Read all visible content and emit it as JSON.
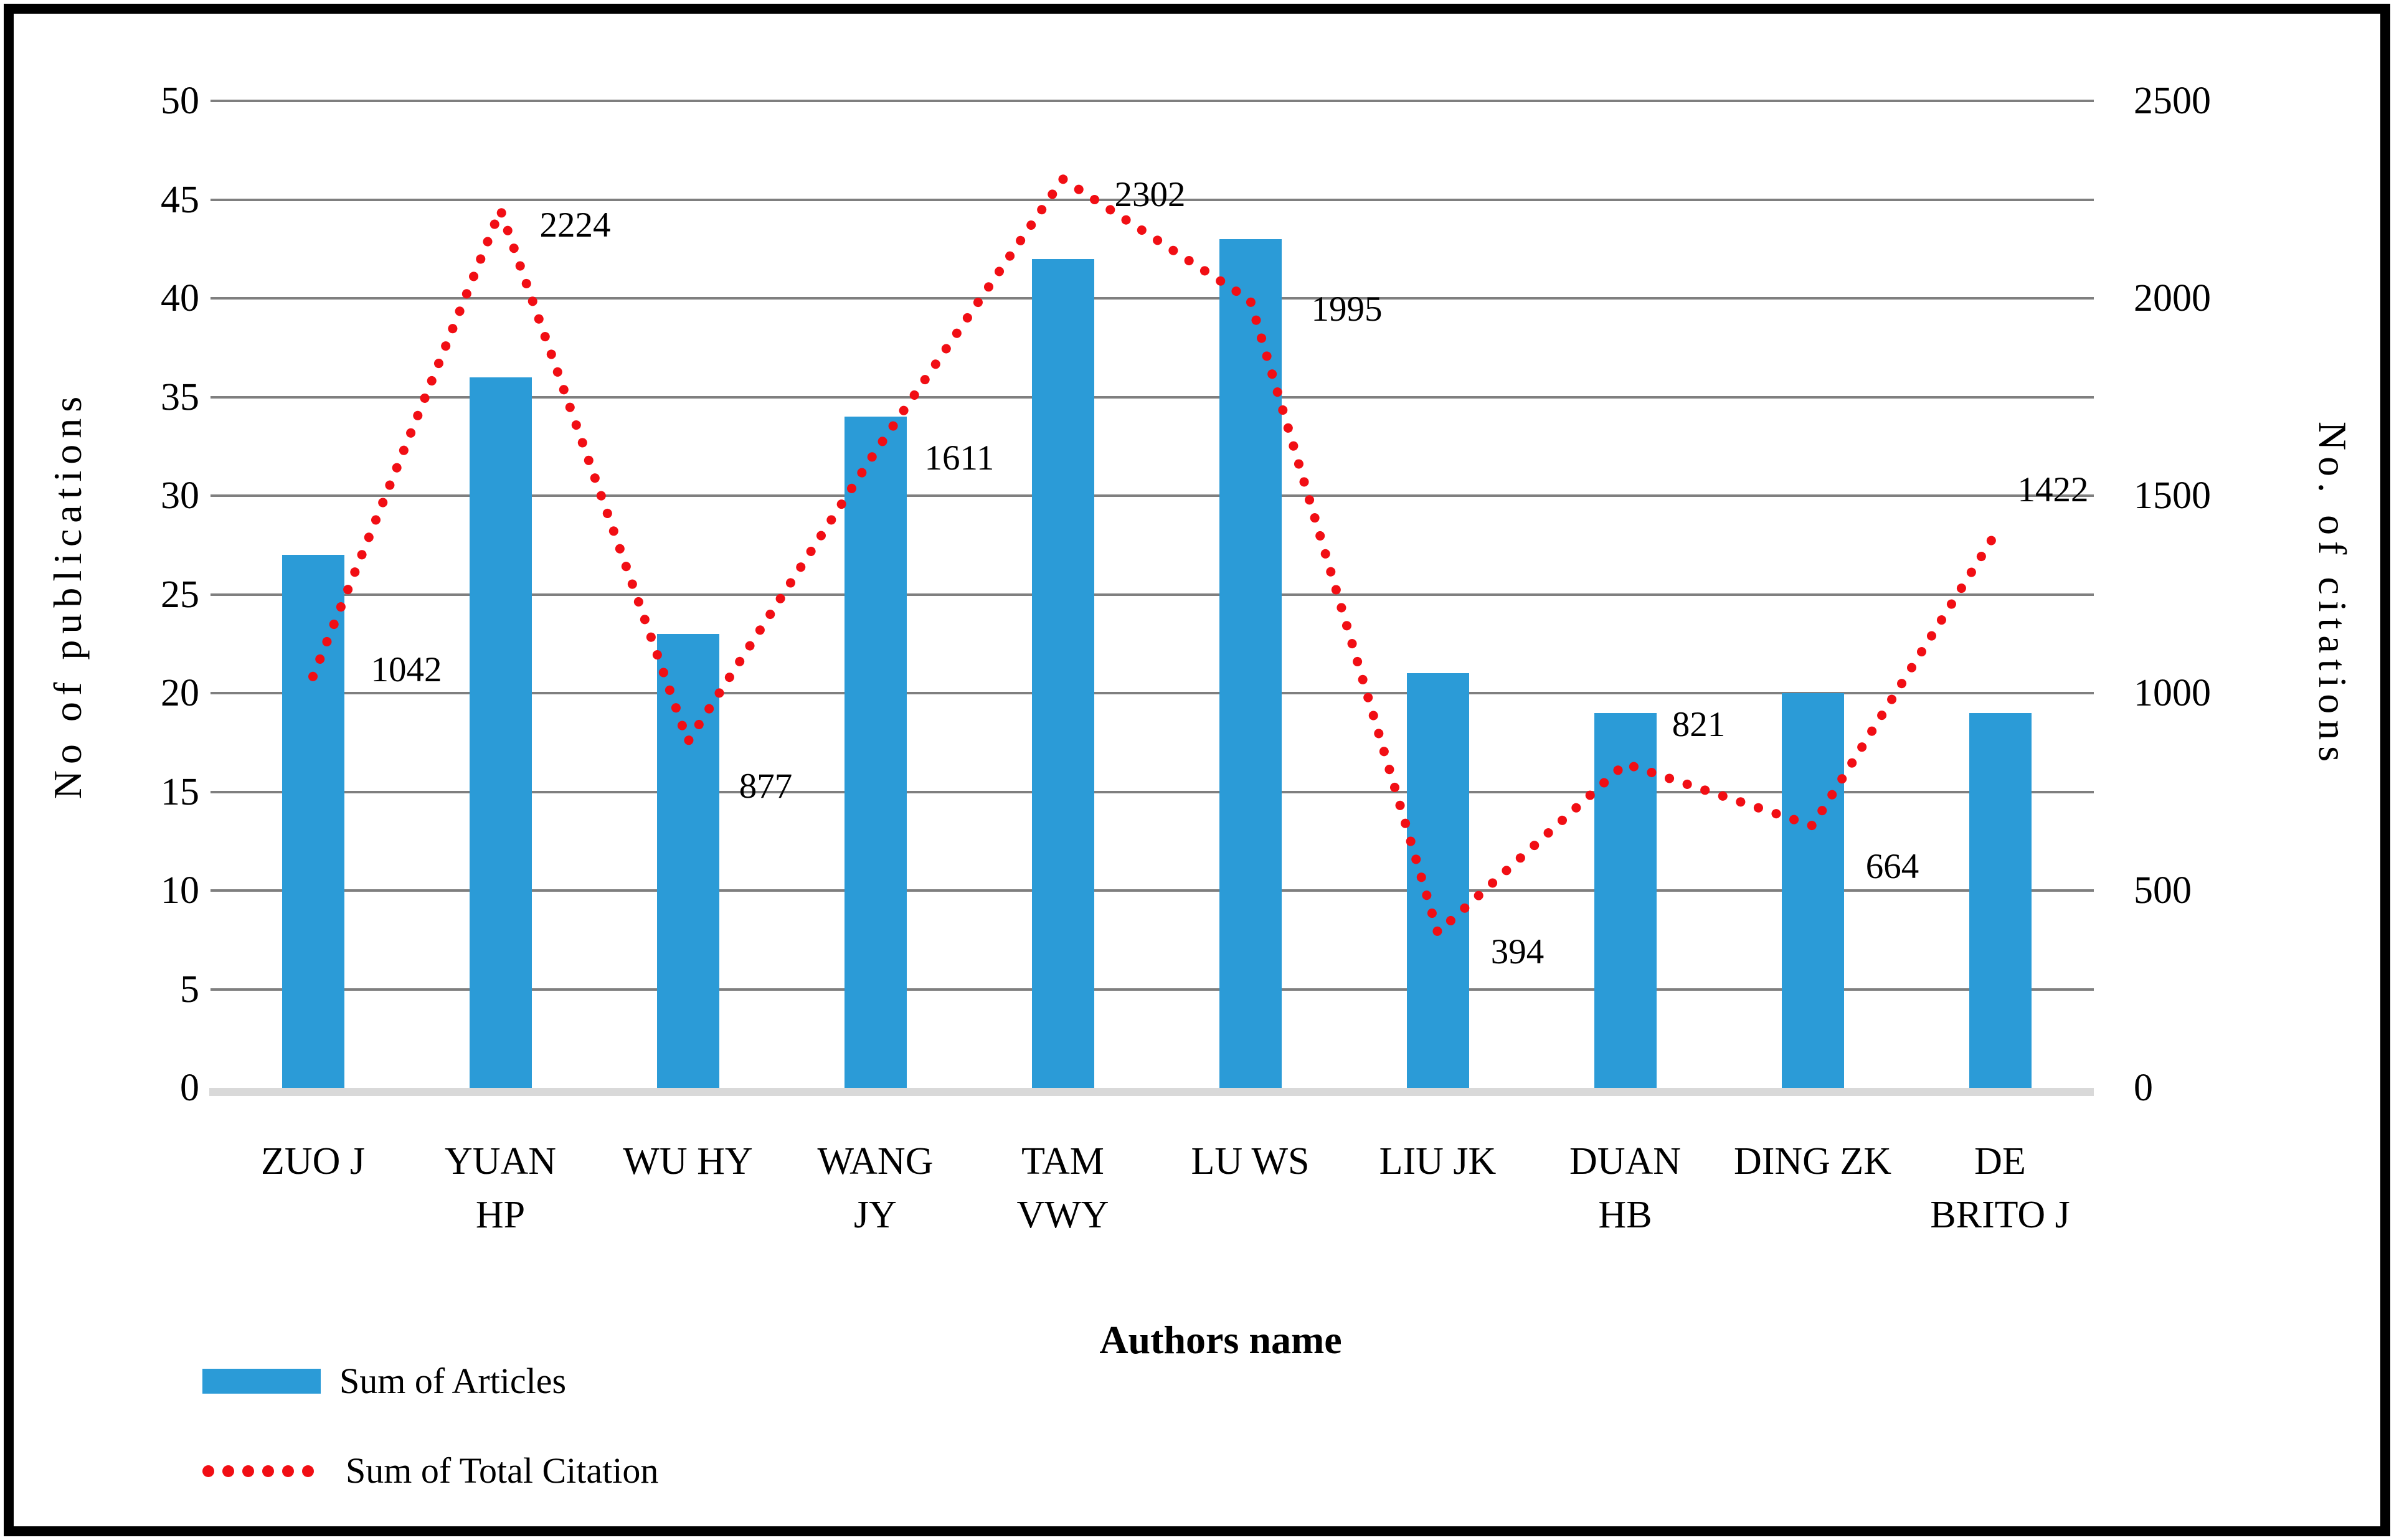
{
  "page": {
    "background": "#ffffff",
    "frame_color": "#000000"
  },
  "chart_data": {
    "type": "combo",
    "categories": [
      "ZUO J",
      "YUAN HP",
      "WU HY",
      "WANG JY",
      "TAM VWY",
      "LU WS",
      "LIU JK",
      "DUAN HB",
      "DING ZK",
      "DE BRITO J"
    ],
    "category_label_lines": [
      [
        "ZUO J"
      ],
      [
        "YUAN",
        "HP"
      ],
      [
        "WU HY"
      ],
      [
        "WANG",
        "JY"
      ],
      [
        "TAM",
        "VWY"
      ],
      [
        "LU WS"
      ],
      [
        "LIU JK"
      ],
      [
        "DUAN",
        "HB"
      ],
      [
        "DING ZK"
      ],
      [
        "DE",
        "BRITO J"
      ]
    ],
    "series": [
      {
        "name": "Sum of Articles",
        "type": "bar",
        "axis": "left",
        "color": "#2B9BD7",
        "values": [
          27,
          36,
          23,
          34,
          42,
          43,
          21,
          19,
          20,
          19
        ]
      },
      {
        "name": "Sum of Total Citation",
        "type": "dotted-line",
        "axis": "right",
        "color": "#F10E14",
        "values": [
          1042,
          2224,
          877,
          1611,
          2302,
          1995,
          394,
          821,
          664,
          1422
        ],
        "data_labels": [
          "1042",
          "2224",
          "877",
          "1611",
          "2302",
          "1995",
          "394",
          "821",
          "664",
          "1422"
        ]
      }
    ],
    "left_axis": {
      "title": "No of publications",
      "min": 0,
      "max": 50,
      "step": 5,
      "tick_labels": [
        "0",
        "5",
        "10",
        "15",
        "20",
        "25",
        "30",
        "35",
        "40",
        "45",
        "50"
      ]
    },
    "right_axis": {
      "title": "No. of citations",
      "min": 0,
      "max": 2500,
      "step": 500,
      "tick_labels": [
        "0",
        "500",
        "1000",
        "1500",
        "2000",
        "2500"
      ]
    },
    "x_axis": {
      "title": "Authors name"
    },
    "legend": [
      {
        "label": "Sum of Articles",
        "swatch": "bar"
      },
      {
        "label": "Sum of Total Citation",
        "swatch": "dots"
      }
    ],
    "gridline_color": "#7f7f7f",
    "baseline_color": "#d9d9d9"
  }
}
